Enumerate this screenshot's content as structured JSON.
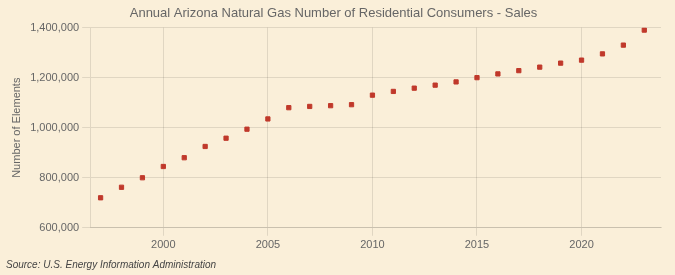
{
  "chart_data": {
    "type": "scatter",
    "title": "Annual Arizona Natural Gas Number of Residential Consumers - Sales",
    "y_label": "Number of Elements",
    "annotations": [
      "Source: U.S. Energy Information Administration"
    ],
    "x": [
      1997,
      1998,
      1999,
      2000,
      2001,
      2002,
      2003,
      2004,
      2005,
      2006,
      2007,
      2008,
      2009,
      2010,
      2011,
      2012,
      2013,
      2014,
      2015,
      2016,
      2017,
      2018,
      2019,
      2020,
      2021,
      2022,
      2023
    ],
    "values": [
      720000,
      762000,
      800000,
      845000,
      880000,
      925000,
      958000,
      994000,
      1035000,
      1080000,
      1085000,
      1088000,
      1092000,
      1130000,
      1145000,
      1158000,
      1170000,
      1183000,
      1200000,
      1215000,
      1228000,
      1242000,
      1258000,
      1270000,
      1295000,
      1330000,
      1390000
    ],
    "color": "#c0392b",
    "marker": "square",
    "xlim": [
      1996.5,
      2023.8
    ],
    "xticks": [
      2000,
      2005,
      2010,
      2015,
      2020
    ],
    "ylim": [
      600000,
      1400000
    ],
    "yticks": [
      {
        "value": 600000,
        "label": "600,000"
      },
      {
        "value": 800000,
        "label": "800,000"
      },
      {
        "value": 1000000,
        "label": "1,000,000"
      },
      {
        "value": 1200000,
        "label": "1,200,000"
      },
      {
        "value": 1400000,
        "label": "1,400,000"
      }
    ],
    "grid": true
  }
}
